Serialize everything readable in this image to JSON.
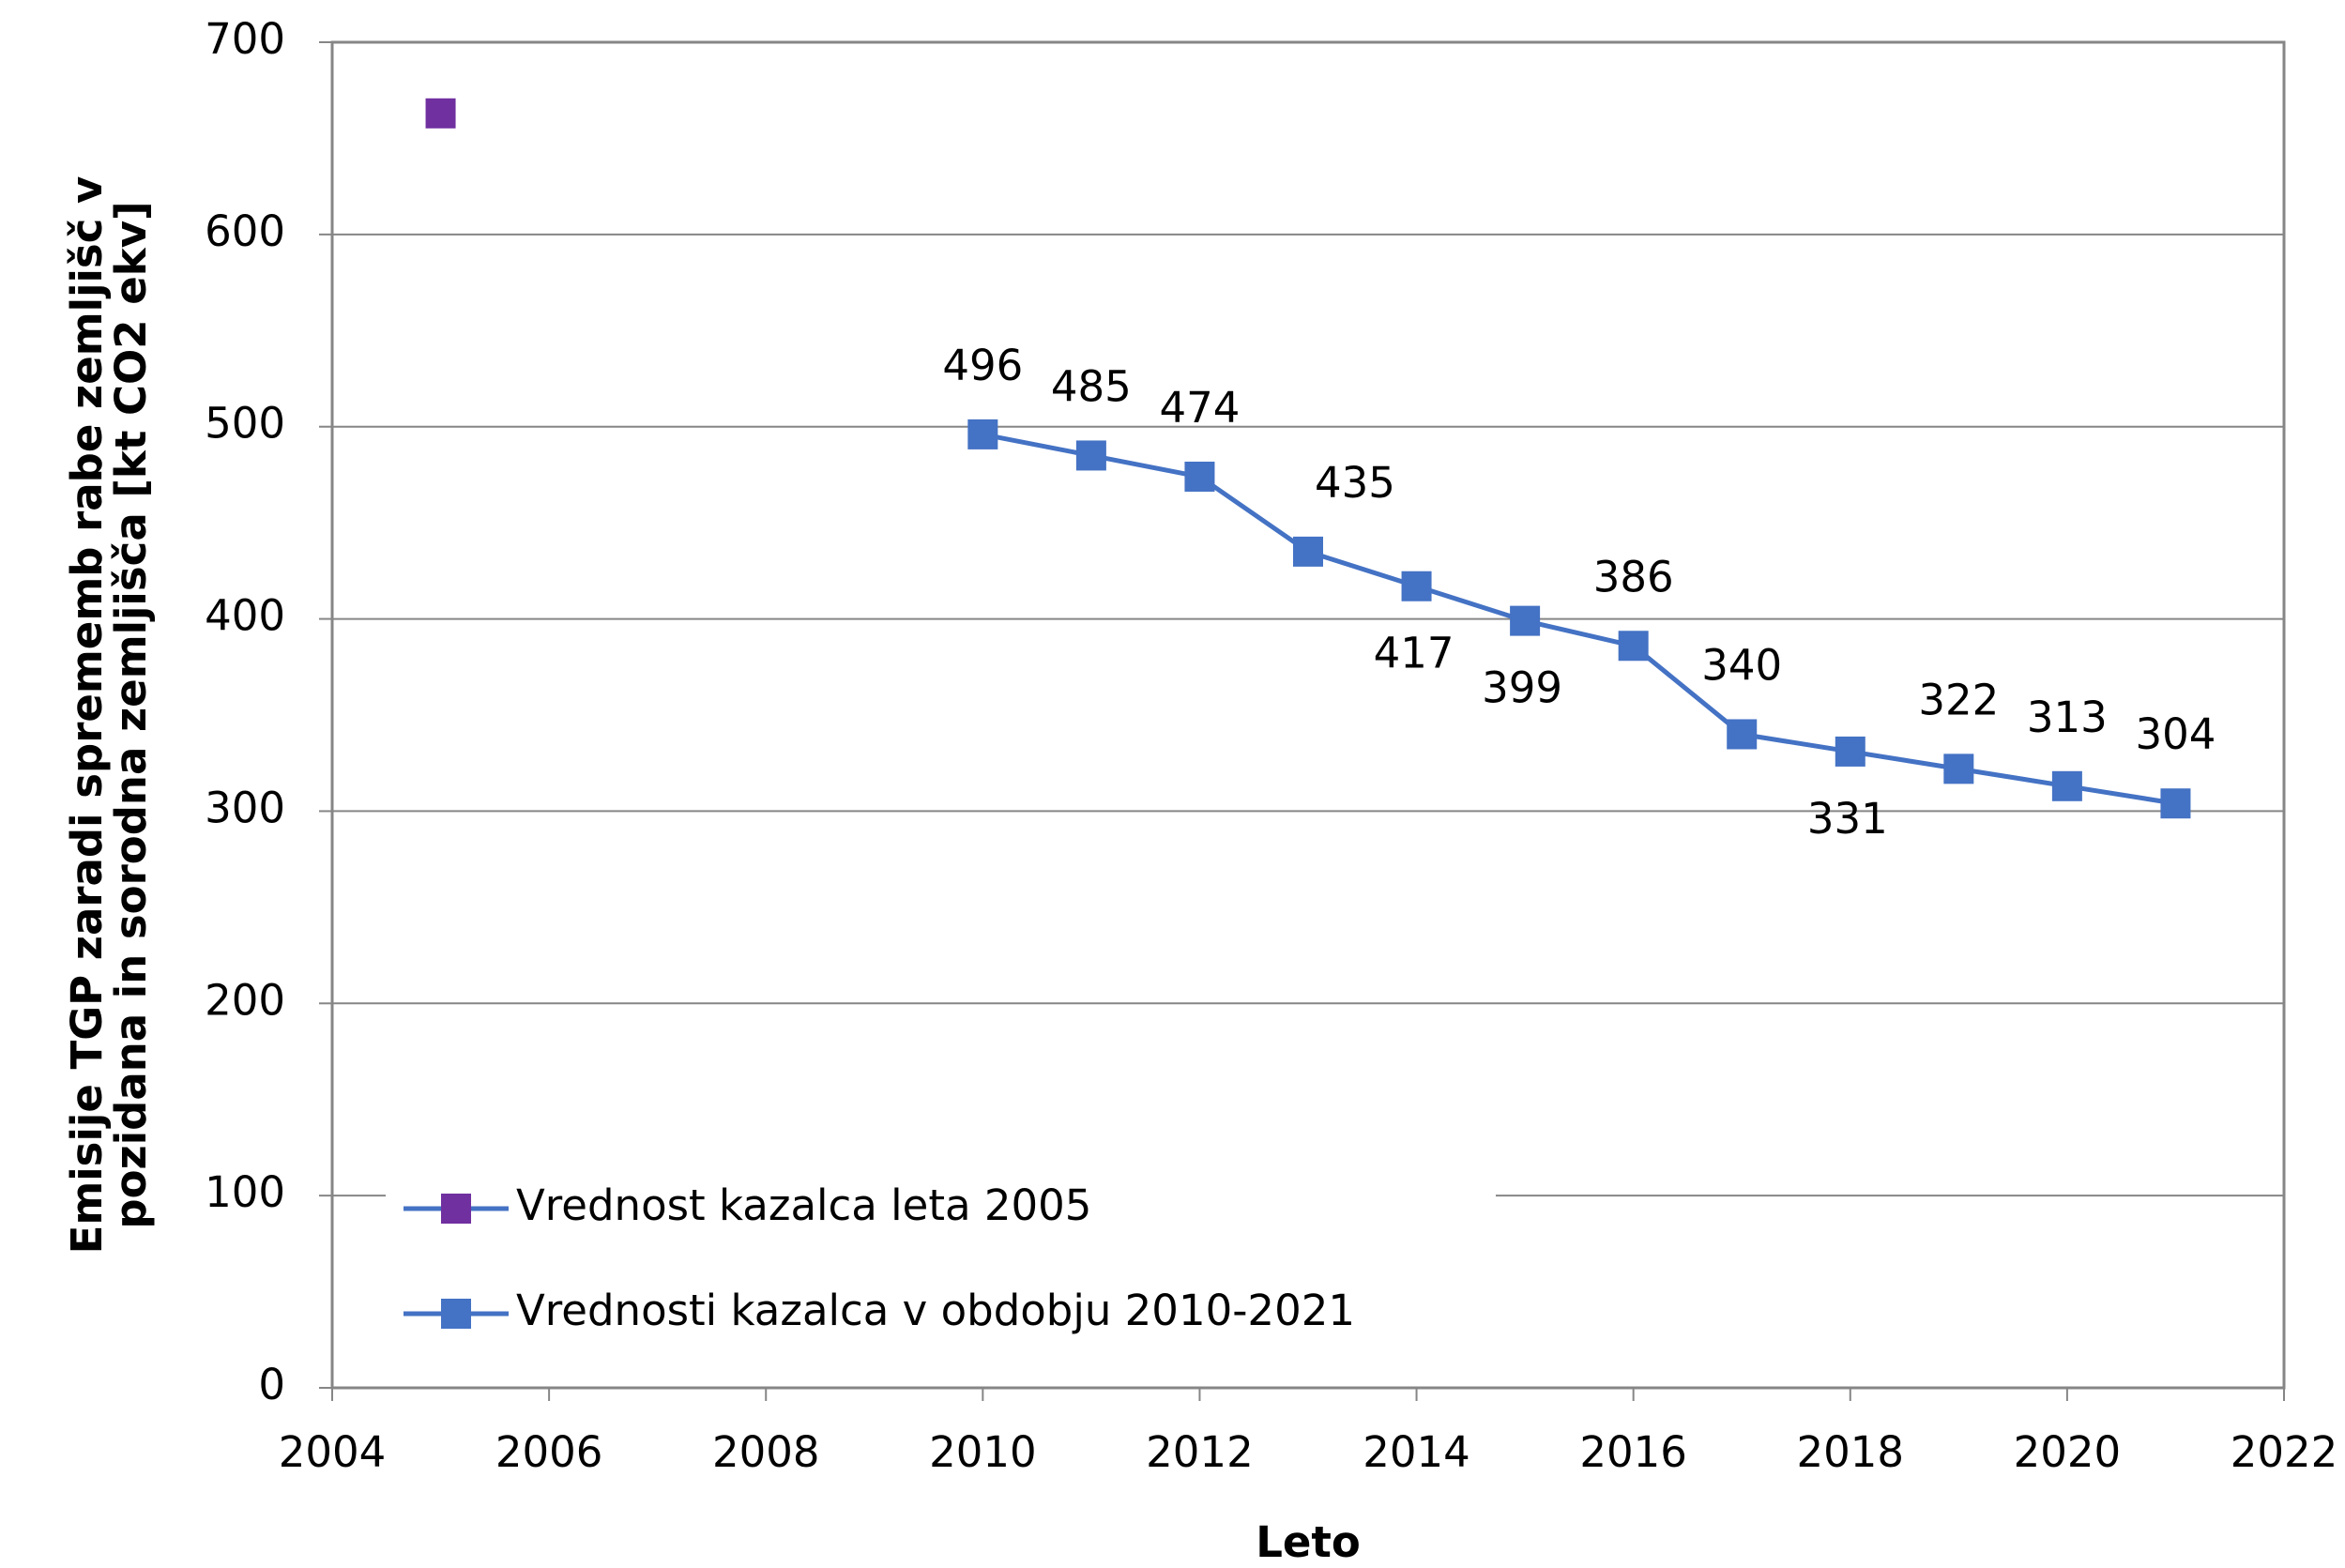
{
  "chart_data": {
    "type": "line",
    "xlabel": "Leto",
    "ylabel": [
      "Emisije TGP zaradi sprememb rabe zemljišč v",
      "pozidana in sorodna zemljišča [kt CO2 ekv]"
    ],
    "series": [
      {
        "name": "Vrednost kazalca leta 2005",
        "color": "#7030a0",
        "line": false,
        "x": [
          2005
        ],
        "values": [
          663
        ]
      },
      {
        "name": "Vrednosti kazalca v obdobju 2010-2021",
        "color": "#4472c4",
        "line": true,
        "x": [
          2010,
          2011,
          2012,
          2013,
          2014,
          2015,
          2016,
          2017,
          2018,
          2019,
          2020,
          2021
        ],
        "values": [
          496,
          485,
          474,
          435,
          417,
          399,
          386,
          340,
          331,
          322,
          313,
          304
        ]
      }
    ],
    "xlim": [
      2004,
      2022
    ],
    "xticks": [
      2004,
      2006,
      2008,
      2010,
      2012,
      2014,
      2016,
      2018,
      2020,
      2022
    ],
    "ylim": [
      0,
      700
    ],
    "yticks": [
      0,
      100,
      200,
      300,
      400,
      500,
      600,
      700
    ],
    "grid": true,
    "legend": "lower left"
  }
}
